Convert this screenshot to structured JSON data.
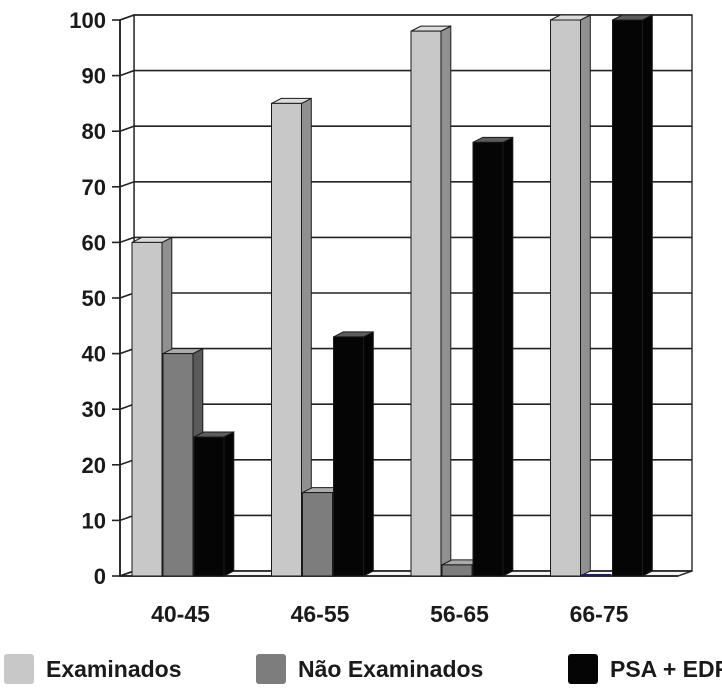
{
  "chart_data": {
    "type": "bar",
    "categories": [
      "40-45",
      "46-55",
      "56-65",
      "66-75"
    ],
    "series": [
      {
        "name": "Examinados",
        "values": [
          60,
          85,
          98,
          100
        ],
        "color": "#c8c8c8"
      },
      {
        "name": "Não Examinados",
        "values": [
          40,
          15,
          2,
          0
        ],
        "color": "#7d7d7d"
      },
      {
        "name": "PSA + EDR",
        "values": [
          25,
          43,
          78,
          100
        ],
        "color": "#050505"
      }
    ],
    "ylim": [
      0,
      100
    ],
    "yticks": [
      0,
      10,
      20,
      30,
      40,
      50,
      60,
      70,
      80,
      90,
      100
    ],
    "title": "",
    "xlabel": "",
    "ylabel": "",
    "grid": true,
    "legend_position": "bottom",
    "bar_style": "3d"
  }
}
